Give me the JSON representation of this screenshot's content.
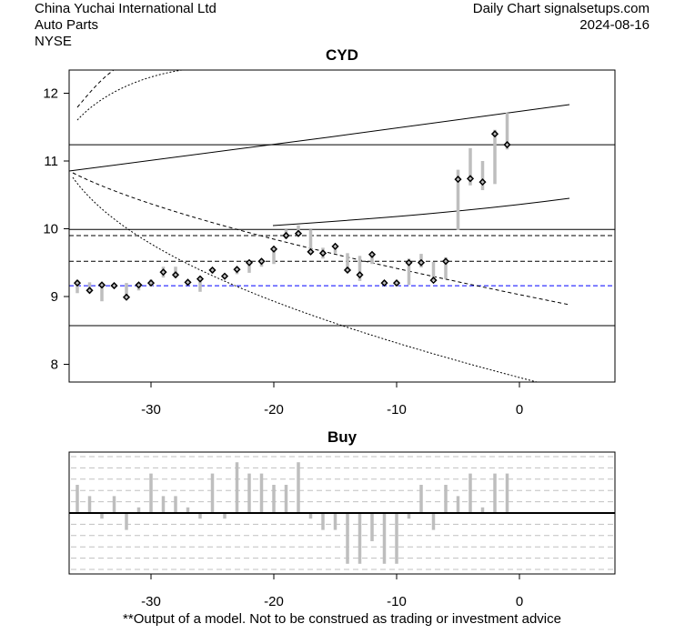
{
  "header": {
    "company": "China Yuchai International Ltd",
    "sector": "Auto Parts",
    "exchange": "NYSE",
    "source": "Daily Chart signalsetups.com",
    "date": "2024-08-16"
  },
  "footer": "**Output of a model. Not to be construed as trading or investment advice",
  "chart_data": [
    {
      "type": "candlestick",
      "title": "CYD",
      "xlim": [
        -37,
        7.5
      ],
      "ylim": [
        7.75,
        12.35
      ],
      "x_ticks": [
        "-30",
        "-20",
        "-10",
        "0"
      ],
      "x_tick_values": [
        -30,
        -20,
        -10,
        0
      ],
      "y_ticks": [
        "8",
        "9",
        "10",
        "11",
        "12"
      ],
      "y_tick_values": [
        8,
        9,
        10,
        11,
        12
      ],
      "x": [
        -36,
        -35,
        -34,
        -33,
        -32,
        -31,
        -30,
        -29,
        -28,
        -27,
        -26,
        -25,
        -24,
        -23,
        -22,
        -21,
        -20,
        -19,
        -18,
        -17,
        -16,
        -15,
        -14,
        -13,
        -12,
        -11,
        -10,
        -9,
        -8,
        -7,
        -6,
        -5,
        -4,
        -3,
        -2,
        -1
      ],
      "high": [
        9.24,
        9.21,
        9.19,
        9.18,
        9.2,
        9.2,
        9.25,
        9.44,
        9.44,
        9.24,
        9.3,
        9.42,
        9.32,
        9.44,
        9.51,
        9.56,
        9.72,
        9.99,
        10.05,
        9.99,
        9.72,
        9.76,
        9.64,
        9.6,
        9.64,
        9.24,
        9.23,
        9.56,
        9.63,
        9.51,
        9.58,
        10.87,
        11.19,
        11.0,
        11.46,
        11.71
      ],
      "low": [
        9.05,
        9.05,
        8.93,
        9.14,
        8.97,
        9.09,
        9.15,
        9.28,
        9.28,
        9.18,
        9.07,
        9.34,
        9.27,
        9.33,
        9.35,
        9.44,
        9.48,
        9.85,
        9.92,
        9.64,
        9.56,
        9.64,
        9.36,
        9.23,
        9.48,
        9.17,
        9.15,
        9.17,
        9.43,
        9.23,
        9.26,
        9.98,
        10.64,
        10.57,
        10.66,
        11.17
      ],
      "close": [
        9.2,
        9.09,
        9.17,
        9.16,
        8.99,
        9.17,
        9.2,
        9.36,
        9.32,
        9.21,
        9.26,
        9.39,
        9.3,
        9.4,
        9.5,
        9.52,
        9.7,
        9.9,
        9.93,
        9.66,
        9.64,
        9.74,
        9.39,
        9.32,
        9.62,
        9.2,
        9.2,
        9.5,
        9.5,
        9.24,
        9.52,
        10.73,
        10.74,
        10.69,
        11.4,
        11.24
      ],
      "levels": {
        "solid": [
          11.24,
          9.99,
          8.57
        ],
        "dashed": [
          9.9,
          9.52
        ],
        "blue_dashed": [
          9.16
        ]
      },
      "colors": {
        "candle": "#bebebe",
        "level_blue": "#0000ff"
      }
    },
    {
      "type": "bar",
      "title": "Buy",
      "xlim": [
        -37,
        7.5
      ],
      "x_ticks": [
        "-30",
        "-20",
        "-10",
        "0"
      ],
      "x_tick_values": [
        -30,
        -20,
        -10,
        0
      ],
      "x": [
        -36,
        -35,
        -34,
        -33,
        -32,
        -31,
        -30,
        -29,
        -28,
        -27,
        -26,
        -25,
        -24,
        -23,
        -22,
        -21,
        -20,
        -19,
        -18,
        -17,
        -16,
        -15,
        -14,
        -13,
        -12,
        -11,
        -10,
        -9,
        -8,
        -7,
        -6,
        -5,
        -4,
        -3,
        -2,
        -1
      ],
      "values": [
        2.5,
        1.5,
        -0.5,
        1.5,
        -1.5,
        0.5,
        3.5,
        1.5,
        1.5,
        0.5,
        -0.5,
        3.5,
        -0.5,
        4.5,
        3.5,
        3.5,
        2.5,
        2.5,
        4.5,
        -0.5,
        -1.5,
        -1.5,
        -4.5,
        -4.5,
        -2.5,
        -4.5,
        -4.5,
        -0.5,
        2.5,
        -1.5,
        2.5,
        1.5,
        3.5,
        0.5,
        3.5,
        3.5
      ],
      "ylim": [
        -5.4,
        5.4
      ],
      "colors": {
        "bar": "#bebebe",
        "grid": "#c0c0c0"
      }
    }
  ]
}
